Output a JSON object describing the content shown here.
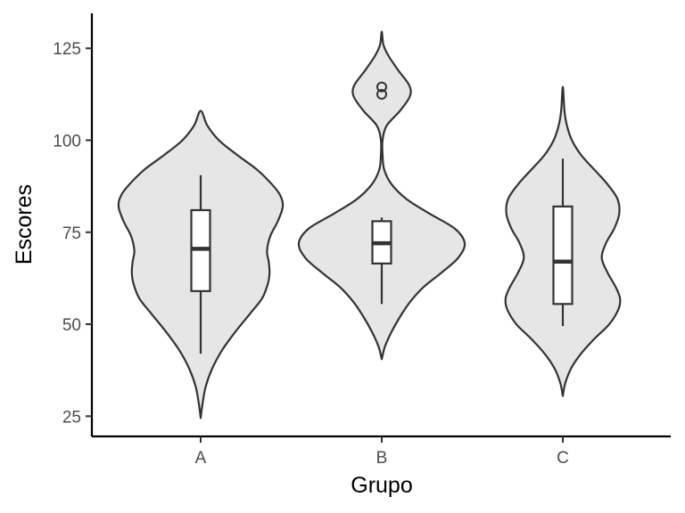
{
  "chart_data": {
    "type": "violin",
    "xlabel": "Grupo",
    "ylabel": "Escores",
    "categories": [
      "A",
      "B",
      "C"
    ],
    "y_ticks": [
      25,
      50,
      75,
      100,
      125
    ],
    "ylim": [
      19.5,
      134.5
    ],
    "grid": false,
    "legend": "none",
    "colors": {
      "violin_fill": "#e6e6e6",
      "line": "#333333",
      "box_fill": "#ffffff",
      "axis": "#000000"
    },
    "series": [
      {
        "group": "A",
        "boxplot": {
          "min": 42,
          "q1": 59,
          "median": 70.5,
          "q3": 81,
          "max": 90.5,
          "outliers": []
        },
        "violin_range": [
          24.5,
          108
        ],
        "density_profile": [
          [
            24.5,
            0.0
          ],
          [
            28,
            0.02
          ],
          [
            33,
            0.06
          ],
          [
            38,
            0.14
          ],
          [
            43,
            0.26
          ],
          [
            48,
            0.42
          ],
          [
            53,
            0.6
          ],
          [
            57,
            0.74
          ],
          [
            61,
            0.81
          ],
          [
            64,
            0.83
          ],
          [
            67,
            0.82
          ],
          [
            70,
            0.8
          ],
          [
            74,
            0.84
          ],
          [
            78,
            0.93
          ],
          [
            82,
            0.99
          ],
          [
            85,
            0.96
          ],
          [
            88,
            0.86
          ],
          [
            92,
            0.68
          ],
          [
            96,
            0.44
          ],
          [
            100,
            0.22
          ],
          [
            104,
            0.08
          ],
          [
            108,
            0.0
          ]
        ]
      },
      {
        "group": "B",
        "boxplot": {
          "min": 55.5,
          "q1": 66.5,
          "median": 72,
          "q3": 78,
          "max": 79,
          "outliers": [
            112.5,
            114.5
          ]
        },
        "violin_range": [
          40.5,
          129.5
        ],
        "density_profile": [
          [
            40.5,
            0.0
          ],
          [
            44,
            0.04
          ],
          [
            48,
            0.12
          ],
          [
            52,
            0.22
          ],
          [
            56,
            0.34
          ],
          [
            60,
            0.5
          ],
          [
            64,
            0.72
          ],
          [
            68,
            0.92
          ],
          [
            72,
            1.0
          ],
          [
            76,
            0.88
          ],
          [
            80,
            0.58
          ],
          [
            84,
            0.3
          ],
          [
            88,
            0.12
          ],
          [
            92,
            0.03
          ],
          [
            96,
            0.01
          ],
          [
            100,
            0.01
          ],
          [
            104,
            0.06
          ],
          [
            108,
            0.22
          ],
          [
            112,
            0.34
          ],
          [
            115,
            0.33
          ],
          [
            119,
            0.2
          ],
          [
            123,
            0.08
          ],
          [
            126,
            0.02
          ],
          [
            129.5,
            0.0
          ]
        ]
      },
      {
        "group": "C",
        "boxplot": {
          "min": 49.5,
          "q1": 55.5,
          "median": 67,
          "q3": 82,
          "max": 95,
          "outliers": []
        },
        "violin_range": [
          30.5,
          114.5
        ],
        "density_profile": [
          [
            30.5,
            0.0
          ],
          [
            34,
            0.03
          ],
          [
            38,
            0.1
          ],
          [
            42,
            0.22
          ],
          [
            46,
            0.38
          ],
          [
            50,
            0.56
          ],
          [
            54,
            0.67
          ],
          [
            57,
            0.69
          ],
          [
            60,
            0.64
          ],
          [
            64,
            0.54
          ],
          [
            68,
            0.47
          ],
          [
            72,
            0.52
          ],
          [
            76,
            0.62
          ],
          [
            80,
            0.68
          ],
          [
            84,
            0.66
          ],
          [
            88,
            0.54
          ],
          [
            92,
            0.38
          ],
          [
            96,
            0.22
          ],
          [
            100,
            0.11
          ],
          [
            104,
            0.05
          ],
          [
            108,
            0.02
          ],
          [
            114.5,
            0.0
          ]
        ]
      }
    ]
  }
}
